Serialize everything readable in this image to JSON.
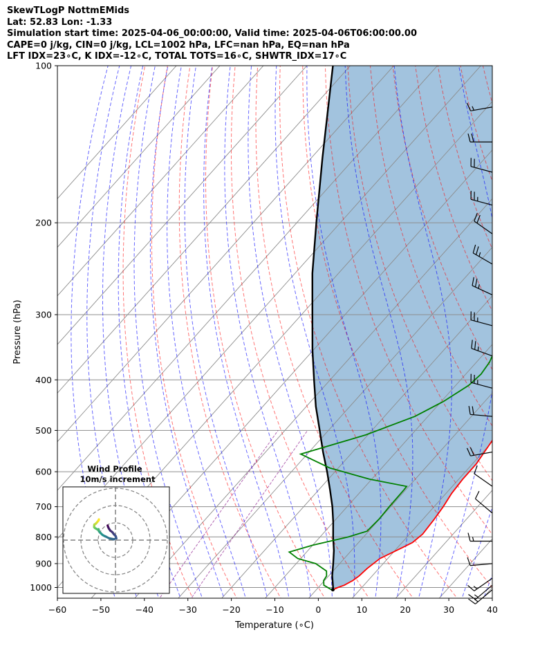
{
  "title": {
    "line1": "SkewTLogP NottmEMids",
    "line2": "Lat: 52.83   Lon: -1.33",
    "line3": "Simulation start time: 2025-04-06_00:00:00, Valid time: 2025-04-06T06:00:00.00",
    "line4": "CAPE=0 j/kg, CIN=0 j/kg, LCL=1002 hPa, LFC=nan hPa, EQ=nan hPa",
    "line5": "LFT IDX=23∘C, K IDX=-12∘C, TOTAL TOTS=16∘C, SHWTR_IDX=17∘C"
  },
  "chart_data": {
    "type": "skewt",
    "xlabel": "Temperature (∘C)",
    "ylabel": "Pressure (hPa)",
    "xlim": [
      -60,
      40
    ],
    "ylim": [
      1040,
      100
    ],
    "x_ticks": [
      -60,
      -50,
      -40,
      -30,
      -20,
      -10,
      0,
      10,
      20,
      30,
      40
    ],
    "x_tick_labels": [
      "−60",
      "−50",
      "−40",
      "−30",
      "−20",
      "−10",
      "0",
      "10",
      "20",
      "30",
      "40"
    ],
    "y_ticks": [
      1000,
      900,
      800,
      700,
      600,
      500,
      400,
      300,
      200,
      100
    ],
    "y_tick_labels": [
      "1000",
      "900",
      "800",
      "700",
      "600",
      "500",
      "400",
      "300",
      "200",
      "100"
    ],
    "grid": true,
    "colors": {
      "temperature": "#ff0000",
      "dewpoint": "#008000",
      "parcel": "#000000",
      "cin_fill": "#7aaad0",
      "dry_adiabat": "#ff0000",
      "moist_adiabat": "#0000ff",
      "mixing_ratio": "#800080",
      "isotherm": "#8c8c8c"
    },
    "series": [
      {
        "id": "temperature",
        "points": [
          [
            1010,
            3.8
          ],
          [
            1000,
            4.5
          ],
          [
            990,
            5.5
          ],
          [
            970,
            6.5
          ],
          [
            950,
            7
          ],
          [
            920,
            7.3
          ],
          [
            880,
            8.2
          ],
          [
            840,
            11
          ],
          [
            820,
            12.4
          ],
          [
            790,
            13
          ],
          [
            740,
            12.6
          ],
          [
            700,
            12.1
          ],
          [
            660,
            11.3
          ],
          [
            620,
            10.9
          ],
          [
            580,
            10.9
          ],
          [
            520,
            9.7
          ],
          [
            480,
            7.7
          ],
          [
            450,
            5.3
          ],
          [
            400,
            0
          ],
          [
            370,
            -3
          ],
          [
            340,
            -5
          ],
          [
            310,
            -8.8
          ],
          [
            290,
            -11
          ],
          [
            260,
            -14.7
          ],
          [
            240,
            -17
          ],
          [
            225,
            -19
          ],
          [
            210,
            -21.5
          ],
          [
            200,
            -23
          ],
          [
            190,
            -22
          ],
          [
            180,
            -19
          ],
          [
            170,
            -13
          ],
          [
            160,
            -8
          ],
          [
            150,
            -3.5
          ],
          [
            140,
            0.3
          ],
          [
            130,
            3.3
          ],
          [
            120,
            6.5
          ],
          [
            110,
            10
          ],
          [
            100,
            13
          ]
        ]
      },
      {
        "id": "dewpoint",
        "points": [
          [
            1010,
            3.5
          ],
          [
            990,
            0.8
          ],
          [
            970,
            -0.2
          ],
          [
            950,
            -0.5
          ],
          [
            930,
            -1.5
          ],
          [
            900,
            -5.5
          ],
          [
            880,
            -10.7
          ],
          [
            855,
            -14
          ],
          [
            830,
            -10
          ],
          [
            800,
            -3.5
          ],
          [
            780,
            -0.4
          ],
          [
            740,
            -0.1
          ],
          [
            700,
            -0.3
          ],
          [
            650,
            -0.4
          ],
          [
            640,
            -0.5
          ],
          [
            620,
            -10.5
          ],
          [
            590,
            -22
          ],
          [
            555,
            -31.5
          ],
          [
            510,
            -20.5
          ],
          [
            470,
            -13
          ],
          [
            440,
            -9.5
          ],
          [
            410,
            -7
          ],
          [
            390,
            -6.5
          ],
          [
            370,
            -7
          ],
          [
            350,
            -8.3
          ],
          [
            320,
            -11.5
          ],
          [
            300,
            -13.2
          ],
          [
            290,
            -14
          ],
          [
            270,
            -15
          ],
          [
            240,
            -16.5
          ],
          [
            220,
            -17.5
          ],
          [
            200,
            -18
          ],
          [
            175,
            -17
          ],
          [
            165,
            -17.2
          ],
          [
            155,
            -18.5
          ],
          [
            145,
            -20
          ],
          [
            140,
            -20.3
          ],
          [
            130,
            -17
          ],
          [
            120,
            -14
          ],
          [
            110,
            -11
          ],
          [
            100,
            -7
          ]
        ]
      },
      {
        "id": "parcel",
        "points": [
          [
            1010,
            3.8
          ],
          [
            1002,
            3.5
          ],
          [
            950,
            0.8
          ],
          [
            900,
            -1.5
          ],
          [
            850,
            -4
          ],
          [
            800,
            -7
          ],
          [
            750,
            -10
          ],
          [
            700,
            -13.4
          ],
          [
            650,
            -17.4
          ],
          [
            600,
            -21.8
          ],
          [
            550,
            -26.8
          ],
          [
            500,
            -32
          ],
          [
            450,
            -37.8
          ],
          [
            400,
            -43.7
          ],
          [
            350,
            -50.3
          ],
          [
            300,
            -57.5
          ],
          [
            250,
            -66
          ],
          [
            200,
            -75.5
          ],
          [
            150,
            -87.5
          ],
          [
            100,
            -104
          ]
        ]
      }
    ],
    "wind_barbs": [
      {
        "p": 1010,
        "dir": 230,
        "speed": 15
      },
      {
        "p": 990,
        "dir": 230,
        "speed": 15
      },
      {
        "p": 960,
        "dir": 235,
        "speed": 15
      },
      {
        "p": 900,
        "dir": 265,
        "speed": 10
      },
      {
        "p": 815,
        "dir": 270,
        "speed": 15
      },
      {
        "p": 720,
        "dir": 310,
        "speed": 10
      },
      {
        "p": 640,
        "dir": 305,
        "speed": 10
      },
      {
        "p": 550,
        "dir": 260,
        "speed": 20
      },
      {
        "p": 470,
        "dir": 275,
        "speed": 20
      },
      {
        "p": 415,
        "dir": 285,
        "speed": 25
      },
      {
        "p": 360,
        "dir": 290,
        "speed": 25
      },
      {
        "p": 315,
        "dir": 285,
        "speed": 25
      },
      {
        "p": 275,
        "dir": 295,
        "speed": 25
      },
      {
        "p": 240,
        "dir": 300,
        "speed": 25
      },
      {
        "p": 210,
        "dir": 305,
        "speed": 20
      },
      {
        "p": 185,
        "dir": 285,
        "speed": 25
      },
      {
        "p": 160,
        "dir": 285,
        "speed": 20
      },
      {
        "p": 140,
        "dir": 270,
        "speed": 20
      },
      {
        "p": 120,
        "dir": 260,
        "speed": 15
      }
    ],
    "hodograph": {
      "title": "Wind Profile",
      "subtitle": "10m/s increment",
      "rings": [
        10,
        20,
        30
      ],
      "points": [
        [
          -4.5,
          8.4
        ],
        [
          -4.2,
          7.5
        ],
        [
          -3.8,
          6.7
        ],
        [
          -3,
          5.5
        ],
        [
          -1.8,
          4.6
        ],
        [
          -1,
          3.5
        ],
        [
          0.2,
          2.2
        ],
        [
          0.5,
          1
        ],
        [
          -1,
          0.5
        ],
        [
          -3.5,
          1
        ],
        [
          -5.5,
          2
        ],
        [
          -6.4,
          2.4
        ],
        [
          -7.5,
          3
        ],
        [
          -8.5,
          4
        ],
        [
          -9.5,
          5
        ],
        [
          -9.8,
          6.3
        ],
        [
          -10.2,
          6
        ],
        [
          -11,
          6.5
        ],
        [
          -11.9,
          7
        ],
        [
          -12.3,
          7.5
        ],
        [
          -12.3,
          8.2
        ],
        [
          -12.2,
          9
        ],
        [
          -11.4,
          9.5
        ],
        [
          -10.5,
          10.5
        ],
        [
          -9.7,
          11.5
        ],
        [
          -9.6,
          12
        ]
      ]
    }
  }
}
